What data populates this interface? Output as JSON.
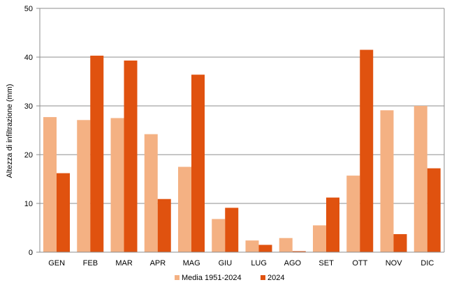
{
  "chart_data": {
    "type": "bar",
    "title": "",
    "xlabel": "",
    "ylabel": "Altezza di infiltrazione (mm)",
    "ylim": [
      0,
      50
    ],
    "yticks": [
      0,
      10,
      20,
      30,
      40,
      50
    ],
    "grid": true,
    "legend_position": "bottom",
    "categories": [
      "GEN",
      "FEB",
      "MAR",
      "APR",
      "MAG",
      "GIU",
      "LUG",
      "AGO",
      "SET",
      "OTT",
      "NOV",
      "DIC"
    ],
    "series": [
      {
        "name": "Media 1951-2024",
        "color": "#f4b183",
        "values": [
          27.7,
          27.1,
          27.5,
          24.2,
          17.5,
          6.8,
          2.4,
          2.9,
          5.5,
          15.7,
          29.1,
          30.0
        ]
      },
      {
        "name": "2024",
        "color": "#e0520f",
        "values": [
          16.2,
          40.3,
          39.3,
          10.9,
          36.4,
          9.1,
          1.5,
          0.2,
          11.2,
          41.5,
          3.7,
          17.2
        ]
      }
    ]
  }
}
